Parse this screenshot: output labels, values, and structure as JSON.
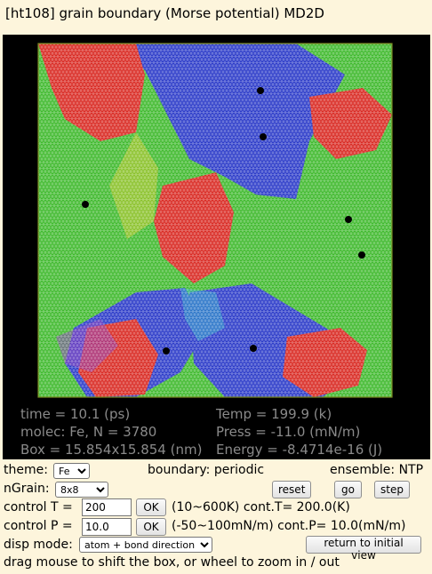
{
  "title": "[ht108] grain boundary (Morse potential) MD2D",
  "stats": {
    "time": "time = 10.1 (ps)",
    "temp": "Temp = 199.9 (k)",
    "molec": "molec: Fe,   N = 3780",
    "press": "Press = -11.0 (mN/m)",
    "box": "Box = 15.854x15.854 (nm)",
    "energy": "Energy = -8.4714e-16 (J)"
  },
  "controls": {
    "theme_label": "theme:",
    "theme_value": "Fe",
    "boundary": "boundary: periodic",
    "ensemble": "ensemble: NTP",
    "ngrain_label": "nGrain:",
    "ngrain_value": "8x8",
    "reset_label": "reset",
    "go_label": "go",
    "step_label": "step",
    "control_t_label": "control T =",
    "control_t_value": "200",
    "ok_label": "OK",
    "t_range": "(10~600K) cont.T= 200.0(K)",
    "control_p_label": "control P =",
    "control_p_value": "10.0",
    "p_range": "(-50~100mN/m) cont.P= 10.0(mN/m)",
    "disp_mode_label": "disp mode:",
    "disp_mode_value": "atom + bond direction",
    "return_label": "return to initial view",
    "hint": "drag mouse to shift the box, or wheel to zoom in / out"
  },
  "colors": {
    "background": "#fdf5dc",
    "canvas": "#000000",
    "stats_text": "#8a8a8a",
    "grain_red": "#d8261f",
    "grain_green": "#3cb82a",
    "grain_blue": "#2838c8",
    "box_border": "#7a8a20"
  }
}
